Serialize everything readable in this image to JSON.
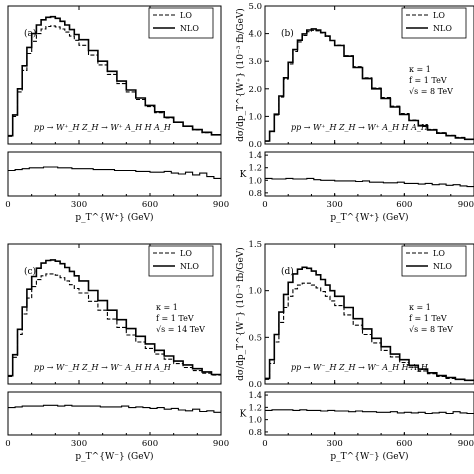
{
  "chart_data": [
    {
      "type": "line",
      "panel_label": "(a)",
      "process": "pp → W⁺_H Z_H → W⁺ A_H H A_H",
      "params": [],
      "ylabel": "",
      "xlabel": "p_T^{W⁺}  (GeV)",
      "xlim": [
        0,
        900
      ],
      "xticks": [
        "0",
        "300",
        "600",
        "900"
      ],
      "yticks": [],
      "ylim": [
        0,
        4.5
      ],
      "legend": {
        "position": "top-right",
        "entries": [
          "LO",
          "NLO"
        ]
      },
      "series": [
        {
          "name": "LO",
          "style": "dashed",
          "x": [
            0,
            20,
            40,
            60,
            80,
            100,
            120,
            140,
            160,
            180,
            200,
            220,
            240,
            260,
            280,
            300,
            340,
            380,
            420,
            460,
            500,
            540,
            580,
            620,
            660,
            700,
            740,
            780,
            820,
            860,
            900
          ],
          "values": [
            0.25,
            0.9,
            1.7,
            2.4,
            2.95,
            3.35,
            3.6,
            3.75,
            3.83,
            3.85,
            3.82,
            3.75,
            3.65,
            3.52,
            3.38,
            3.22,
            2.9,
            2.58,
            2.27,
            1.97,
            1.7,
            1.45,
            1.22,
            1.02,
            0.85,
            0.7,
            0.57,
            0.46,
            0.37,
            0.3,
            0.24
          ]
        },
        {
          "name": "NLO",
          "style": "solid",
          "x": [
            0,
            20,
            40,
            60,
            80,
            100,
            120,
            140,
            160,
            180,
            200,
            220,
            240,
            260,
            280,
            300,
            340,
            380,
            420,
            460,
            500,
            540,
            580,
            620,
            660,
            700,
            740,
            780,
            820,
            860,
            900
          ],
          "values": [
            0.27,
            0.95,
            1.8,
            2.55,
            3.15,
            3.6,
            3.88,
            4.05,
            4.13,
            4.15,
            4.1,
            4.0,
            3.88,
            3.73,
            3.57,
            3.4,
            3.05,
            2.7,
            2.37,
            2.05,
            1.76,
            1.5,
            1.26,
            1.05,
            0.87,
            0.71,
            0.58,
            0.47,
            0.38,
            0.3,
            0.24
          ]
        }
      ],
      "ratio": {
        "ylabel": "",
        "yticks": [],
        "ylim": [
          0.75,
          1.25
        ],
        "x": [
          0,
          30,
          60,
          90,
          120,
          150,
          180,
          210,
          240,
          270,
          300,
          330,
          360,
          390,
          420,
          450,
          480,
          510,
          540,
          570,
          600,
          630,
          660,
          690,
          720,
          750,
          780,
          810,
          840,
          870,
          900
        ],
        "values": [
          1.04,
          1.05,
          1.06,
          1.07,
          1.07,
          1.08,
          1.08,
          1.07,
          1.07,
          1.06,
          1.06,
          1.06,
          1.05,
          1.05,
          1.05,
          1.04,
          1.04,
          1.04,
          1.03,
          1.03,
          1.02,
          1.02,
          1.03,
          1.01,
          1.0,
          1.02,
          0.99,
          1.01,
          0.97,
          0.95,
          0.93
        ]
      }
    },
    {
      "type": "line",
      "panel_label": "(b)",
      "process": "pp → W⁺_H Z_H → W⁺ A_H H A_H",
      "params": [
        "κ = 1",
        "f = 1 TeV",
        "√s = 8 TeV"
      ],
      "ylabel": "dσ/dp_T^{W⁺}  (10⁻³ fb/GeV)",
      "xlabel": "p_T^{W⁺}  (GeV)",
      "xlim": [
        0,
        900
      ],
      "xticks": [
        "0",
        "300",
        "600",
        "900"
      ],
      "yticks": [
        "0.0",
        "1.0",
        "2.0",
        "3.0",
        "4.0",
        "5.0"
      ],
      "ylim": [
        0,
        5.0
      ],
      "legend": {
        "position": "top-right",
        "entries": [
          "LO",
          "NLO"
        ]
      },
      "series": [
        {
          "name": "LO",
          "style": "dashed",
          "x": [
            0,
            20,
            40,
            60,
            80,
            100,
            120,
            140,
            160,
            180,
            200,
            220,
            240,
            260,
            280,
            300,
            340,
            380,
            420,
            460,
            500,
            540,
            580,
            620,
            660,
            700,
            740,
            780,
            820,
            860,
            900
          ],
          "values": [
            0.1,
            0.45,
            1.05,
            1.7,
            2.35,
            2.9,
            3.35,
            3.7,
            3.93,
            4.07,
            4.12,
            4.1,
            4.02,
            3.9,
            3.75,
            3.58,
            3.2,
            2.8,
            2.4,
            2.03,
            1.68,
            1.37,
            1.1,
            0.87,
            0.68,
            0.53,
            0.41,
            0.31,
            0.24,
            0.18,
            0.14
          ]
        },
        {
          "name": "NLO",
          "style": "solid",
          "x": [
            0,
            20,
            40,
            60,
            80,
            100,
            120,
            140,
            160,
            180,
            200,
            220,
            240,
            260,
            280,
            300,
            340,
            380,
            420,
            460,
            500,
            540,
            580,
            620,
            660,
            700,
            740,
            780,
            820,
            860,
            900
          ],
          "values": [
            0.11,
            0.46,
            1.08,
            1.74,
            2.4,
            2.96,
            3.42,
            3.76,
            3.99,
            4.13,
            4.17,
            4.13,
            4.04,
            3.91,
            3.75,
            3.57,
            3.18,
            2.77,
            2.37,
            2.0,
            1.65,
            1.34,
            1.07,
            0.85,
            0.66,
            0.51,
            0.39,
            0.3,
            0.22,
            0.17,
            0.13
          ]
        }
      ],
      "ratio": {
        "ylabel": "K",
        "yticks": [
          "0.8",
          "1.0",
          "1.2",
          "1.4"
        ],
        "ylim": [
          0.75,
          1.45
        ],
        "x": [
          0,
          30,
          60,
          90,
          120,
          150,
          180,
          210,
          240,
          270,
          300,
          330,
          360,
          390,
          420,
          450,
          480,
          510,
          540,
          570,
          600,
          630,
          660,
          690,
          720,
          750,
          780,
          810,
          840,
          870,
          900
        ],
        "values": [
          1.03,
          1.02,
          1.02,
          1.03,
          1.02,
          1.02,
          1.03,
          1.01,
          1.0,
          1.0,
          0.99,
          0.99,
          0.99,
          0.98,
          0.99,
          0.97,
          0.97,
          0.96,
          0.96,
          0.97,
          0.95,
          0.95,
          0.94,
          0.95,
          0.93,
          0.94,
          0.92,
          0.93,
          0.91,
          0.9,
          0.89
        ]
      }
    },
    {
      "type": "line",
      "panel_label": "(c)",
      "process": "pp → W⁻_H Z_H → W⁻ A_H H A_H",
      "params": [
        "κ = 1",
        "f = 1 TeV",
        "√s = 14 TeV"
      ],
      "ylabel": "",
      "xlabel": "p_T^{W⁻}  (GeV)",
      "xlim": [
        0,
        900
      ],
      "xticks": [
        "0",
        "300",
        "600",
        "900"
      ],
      "yticks": [],
      "ylim": [
        0,
        2.2
      ],
      "legend": {
        "position": "top-right",
        "entries": [
          "LO",
          "NLO"
        ]
      },
      "series": [
        {
          "name": "LO",
          "style": "dashed",
          "x": [
            0,
            20,
            40,
            60,
            80,
            100,
            120,
            140,
            160,
            180,
            200,
            220,
            240,
            260,
            280,
            300,
            340,
            380,
            420,
            460,
            500,
            540,
            580,
            620,
            660,
            700,
            740,
            780,
            820,
            860,
            900
          ],
          "values": [
            0.12,
            0.42,
            0.78,
            1.1,
            1.35,
            1.53,
            1.64,
            1.7,
            1.73,
            1.73,
            1.71,
            1.67,
            1.62,
            1.56,
            1.5,
            1.43,
            1.3,
            1.16,
            1.02,
            0.89,
            0.77,
            0.66,
            0.56,
            0.47,
            0.39,
            0.32,
            0.26,
            0.21,
            0.17,
            0.14,
            0.11
          ]
        },
        {
          "name": "NLO",
          "style": "solid",
          "x": [
            0,
            20,
            40,
            60,
            80,
            100,
            120,
            140,
            160,
            180,
            200,
            220,
            240,
            260,
            280,
            300,
            340,
            380,
            420,
            460,
            500,
            540,
            580,
            620,
            660,
            700,
            740,
            780,
            820,
            860,
            900
          ],
          "values": [
            0.13,
            0.46,
            0.86,
            1.21,
            1.49,
            1.69,
            1.82,
            1.9,
            1.94,
            1.95,
            1.93,
            1.89,
            1.83,
            1.77,
            1.7,
            1.62,
            1.47,
            1.31,
            1.16,
            1.01,
            0.87,
            0.75,
            0.63,
            0.53,
            0.44,
            0.36,
            0.3,
            0.24,
            0.19,
            0.15,
            0.12
          ]
        }
      ],
      "ratio": {
        "ylabel": "",
        "yticks": [],
        "ylim": [
          0.75,
          1.3
        ],
        "x": [
          0,
          30,
          60,
          90,
          120,
          150,
          180,
          210,
          240,
          270,
          300,
          330,
          360,
          390,
          420,
          450,
          480,
          510,
          540,
          570,
          600,
          630,
          660,
          690,
          720,
          750,
          780,
          810,
          840,
          870,
          900
        ],
        "values": [
          1.1,
          1.11,
          1.12,
          1.12,
          1.12,
          1.13,
          1.13,
          1.12,
          1.13,
          1.12,
          1.12,
          1.12,
          1.12,
          1.11,
          1.11,
          1.11,
          1.12,
          1.1,
          1.11,
          1.1,
          1.09,
          1.1,
          1.08,
          1.09,
          1.07,
          1.06,
          1.08,
          1.05,
          1.06,
          1.04,
          1.05
        ]
      }
    },
    {
      "type": "line",
      "panel_label": "(d)",
      "process": "pp → W⁻_H Z_H → W⁻ A_H H A_H",
      "params": [
        "κ = 1",
        "f = 1 TeV",
        "√s = 8 TeV"
      ],
      "ylabel": "dσ/dp_T^{W⁻}  (10⁻³ fb/GeV)",
      "xlabel": "p_T^{W⁻}  (GeV)",
      "xlim": [
        0,
        900
      ],
      "xticks": [
        "0",
        "300",
        "600",
        "900"
      ],
      "yticks": [
        "0.0",
        "0.5",
        "1.0",
        "1.5"
      ],
      "ylim": [
        0,
        1.5
      ],
      "legend": {
        "position": "top-right",
        "entries": [
          "LO",
          "NLO"
        ]
      },
      "series": [
        {
          "name": "LO",
          "style": "dashed",
          "x": [
            0,
            20,
            40,
            60,
            80,
            100,
            120,
            140,
            160,
            180,
            200,
            220,
            240,
            260,
            280,
            300,
            340,
            380,
            420,
            460,
            500,
            540,
            580,
            620,
            660,
            700,
            740,
            780,
            820,
            860,
            900
          ],
          "values": [
            0.05,
            0.22,
            0.45,
            0.66,
            0.82,
            0.94,
            1.02,
            1.06,
            1.08,
            1.08,
            1.06,
            1.03,
            0.99,
            0.94,
            0.89,
            0.84,
            0.74,
            0.63,
            0.53,
            0.44,
            0.36,
            0.29,
            0.23,
            0.18,
            0.14,
            0.11,
            0.08,
            0.06,
            0.05,
            0.04,
            0.03
          ]
        },
        {
          "name": "NLO",
          "style": "solid",
          "x": [
            0,
            20,
            40,
            60,
            80,
            100,
            120,
            140,
            160,
            180,
            200,
            220,
            240,
            260,
            280,
            300,
            340,
            380,
            420,
            460,
            500,
            540,
            580,
            620,
            660,
            700,
            740,
            780,
            820,
            860,
            900
          ],
          "values": [
            0.06,
            0.26,
            0.53,
            0.77,
            0.96,
            1.09,
            1.18,
            1.23,
            1.25,
            1.24,
            1.21,
            1.17,
            1.12,
            1.06,
            1.0,
            0.94,
            0.82,
            0.7,
            0.59,
            0.49,
            0.4,
            0.32,
            0.26,
            0.2,
            0.16,
            0.12,
            0.09,
            0.07,
            0.05,
            0.04,
            0.03
          ]
        }
      ],
      "ratio": {
        "ylabel": "K",
        "yticks": [
          "0.8",
          "1.0",
          "1.2",
          "1.4"
        ],
        "ylim": [
          0.75,
          1.45
        ],
        "x": [
          0,
          30,
          60,
          90,
          120,
          150,
          180,
          210,
          240,
          270,
          300,
          330,
          360,
          390,
          420,
          450,
          480,
          510,
          540,
          570,
          600,
          630,
          660,
          690,
          720,
          750,
          780,
          810,
          840,
          870,
          900
        ],
        "values": [
          1.15,
          1.16,
          1.16,
          1.16,
          1.15,
          1.16,
          1.15,
          1.15,
          1.14,
          1.15,
          1.14,
          1.14,
          1.13,
          1.14,
          1.13,
          1.13,
          1.12,
          1.12,
          1.13,
          1.11,
          1.12,
          1.11,
          1.12,
          1.1,
          1.11,
          1.12,
          1.1,
          1.13,
          1.11,
          1.1,
          1.12
        ]
      }
    }
  ]
}
